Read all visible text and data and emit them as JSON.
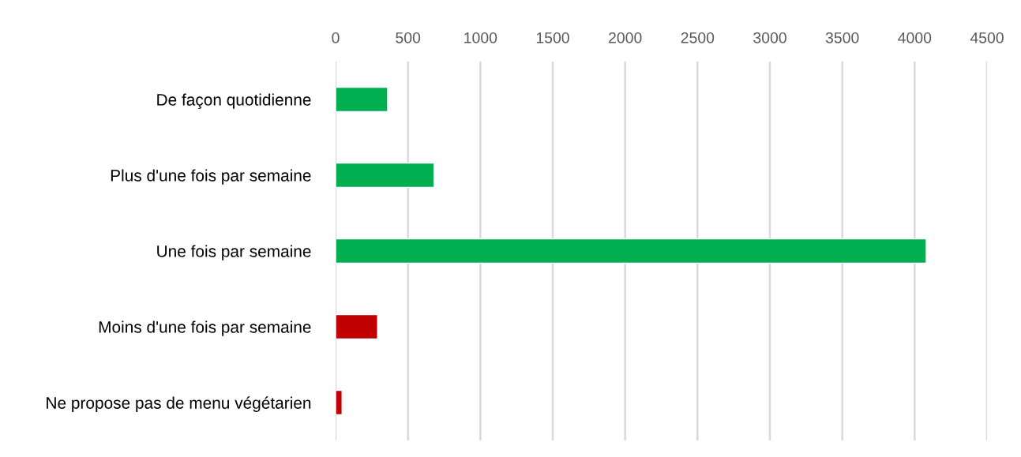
{
  "chart_data": {
    "type": "bar",
    "orientation": "horizontal",
    "categories": [
      "De façon quotidienne",
      "Plus d'une fois par semaine",
      "Une fois par semaine",
      "Moins d'une fois par semaine",
      "Ne propose pas de menu végétarien"
    ],
    "values": [
      360,
      680,
      4080,
      290,
      45
    ],
    "colors": [
      "#00b050",
      "#00b050",
      "#00b050",
      "#c00000",
      "#c00000"
    ],
    "xlim": [
      0,
      4500
    ],
    "xticks": [
      0,
      500,
      1000,
      1500,
      2000,
      2500,
      3000,
      3500,
      4000,
      4500
    ],
    "grid": "x"
  }
}
